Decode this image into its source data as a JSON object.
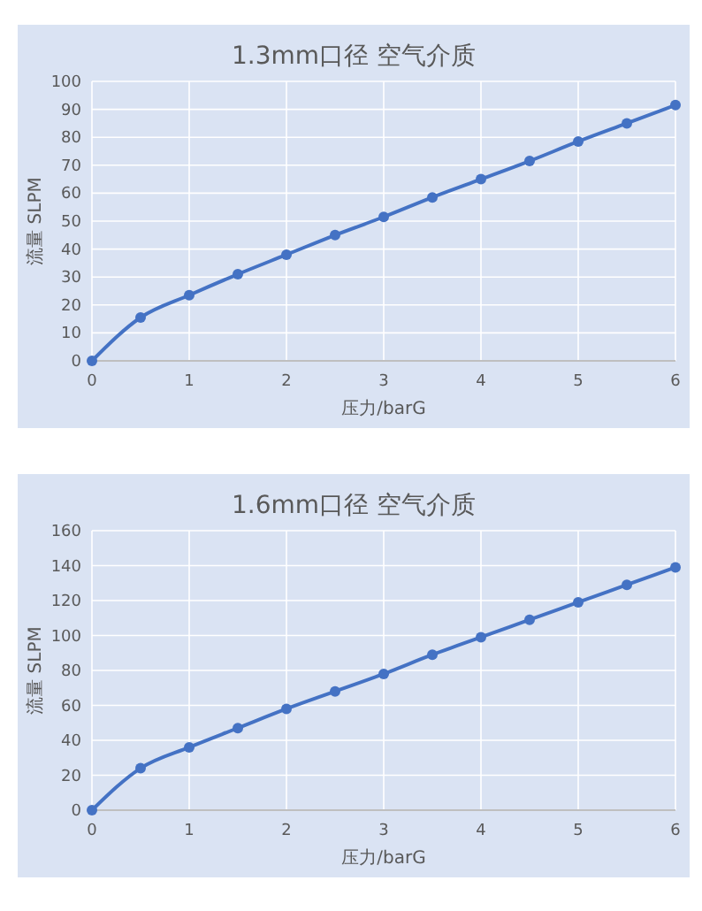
{
  "chart_data": [
    {
      "type": "line",
      "title": "1.3mm口径 空气介质",
      "xlabel": "压力/barG",
      "ylabel": "流量 SLPM",
      "x": [
        0,
        0.5,
        1,
        1.5,
        2,
        2.5,
        3,
        3.5,
        4,
        4.5,
        5,
        5.5,
        6
      ],
      "series": [
        {
          "color": "#4472c4",
          "values": [
            0,
            15.5,
            23.5,
            31,
            38,
            45,
            51.5,
            58.5,
            65,
            71.5,
            78.5,
            85,
            91.5
          ]
        }
      ],
      "xlim": [
        0,
        6
      ],
      "xticks": [
        0,
        1,
        2,
        3,
        4,
        5,
        6
      ],
      "ylim": [
        0,
        100
      ],
      "yticks": [
        0,
        10,
        20,
        30,
        40,
        50,
        60,
        70,
        80,
        90,
        100
      ],
      "grid": true,
      "marker": "circle"
    },
    {
      "type": "line",
      "title": "1.6mm口径 空气介质",
      "xlabel": "压力/barG",
      "ylabel": "流量 SLPM",
      "x": [
        0,
        0.5,
        1,
        1.5,
        2,
        2.5,
        3,
        3.5,
        4,
        4.5,
        5,
        5.5,
        6
      ],
      "series": [
        {
          "color": "#4472c4",
          "values": [
            0,
            24,
            36,
            47,
            58,
            68,
            78,
            89,
            99,
            109,
            119,
            129,
            139
          ]
        }
      ],
      "xlim": [
        0,
        6
      ],
      "xticks": [
        0,
        1,
        2,
        3,
        4,
        5,
        6
      ],
      "ylim": [
        0,
        160
      ],
      "yticks": [
        0,
        20,
        40,
        60,
        80,
        100,
        120,
        140,
        160
      ],
      "grid": true,
      "marker": "circle"
    }
  ]
}
